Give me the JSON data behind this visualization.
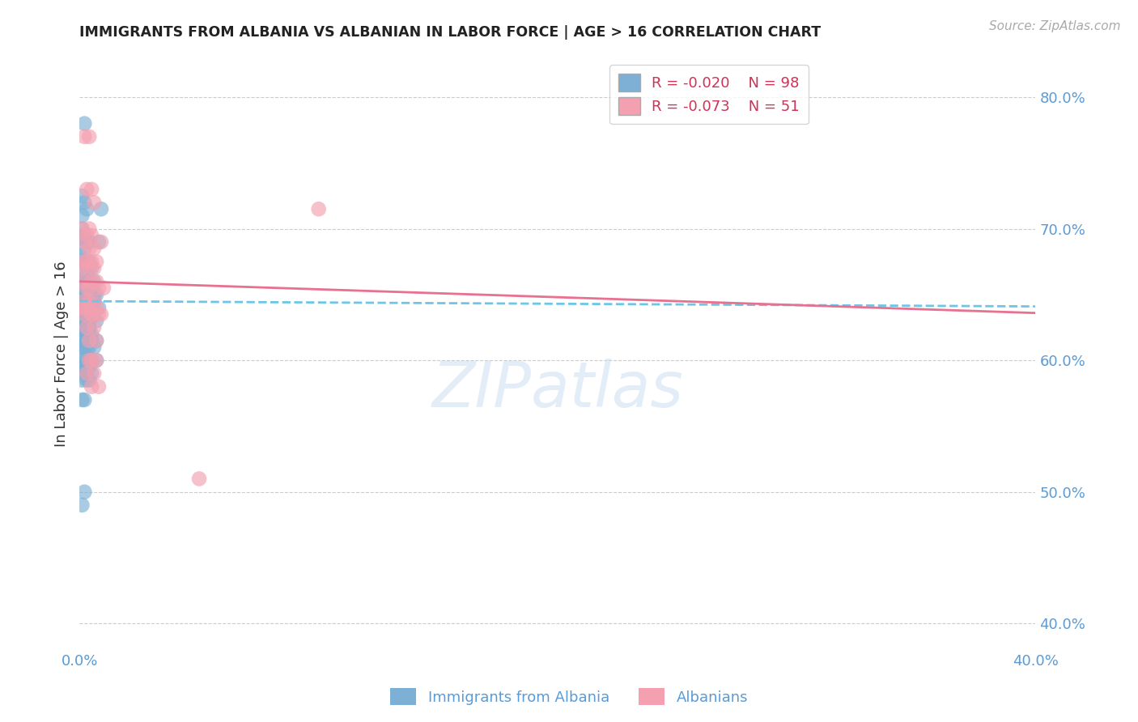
{
  "title": "IMMIGRANTS FROM ALBANIA VS ALBANIAN IN LABOR FORCE | AGE > 16 CORRELATION CHART",
  "source_text": "Source: ZipAtlas.com",
  "ylabel": "In Labor Force | Age > 16",
  "right_yticks": [
    0.8,
    0.7,
    0.6,
    0.5,
    0.4
  ],
  "right_yticklabels": [
    "80.0%",
    "70.0%",
    "60.0%",
    "50.0%",
    "40.0%"
  ],
  "xlim": [
    0.0,
    0.4
  ],
  "ylim": [
    0.38,
    0.83
  ],
  "background_color": "#ffffff",
  "grid_color": "#cccccc",
  "blue_color": "#7EB0D5",
  "pink_color": "#F4A0B0",
  "legend_R1": "R = -0.020",
  "legend_N1": "N = 98",
  "legend_R2": "R = -0.073",
  "legend_N2": "N = 51",
  "title_color": "#222222",
  "axis_color": "#5B9BD5",
  "blue_scatter": [
    [
      0.0,
      0.693
    ],
    [
      0.0,
      0.68
    ],
    [
      0.002,
      0.78
    ],
    [
      0.001,
      0.71
    ],
    [
      0.001,
      0.725
    ],
    [
      0.002,
      0.72
    ],
    [
      0.003,
      0.715
    ],
    [
      0.001,
      0.7
    ],
    [
      0.002,
      0.695
    ],
    [
      0.003,
      0.69
    ],
    [
      0.004,
      0.69
    ],
    [
      0.002,
      0.685
    ],
    [
      0.001,
      0.675
    ],
    [
      0.003,
      0.675
    ],
    [
      0.004,
      0.675
    ],
    [
      0.002,
      0.67
    ],
    [
      0.003,
      0.665
    ],
    [
      0.004,
      0.67
    ],
    [
      0.005,
      0.67
    ],
    [
      0.001,
      0.66
    ],
    [
      0.002,
      0.66
    ],
    [
      0.003,
      0.66
    ],
    [
      0.004,
      0.66
    ],
    [
      0.006,
      0.66
    ],
    [
      0.002,
      0.655
    ],
    [
      0.003,
      0.655
    ],
    [
      0.005,
      0.655
    ],
    [
      0.001,
      0.65
    ],
    [
      0.002,
      0.65
    ],
    [
      0.003,
      0.65
    ],
    [
      0.004,
      0.65
    ],
    [
      0.006,
      0.65
    ],
    [
      0.007,
      0.65
    ],
    [
      0.001,
      0.645
    ],
    [
      0.002,
      0.645
    ],
    [
      0.003,
      0.645
    ],
    [
      0.004,
      0.645
    ],
    [
      0.005,
      0.645
    ],
    [
      0.006,
      0.645
    ],
    [
      0.0,
      0.64
    ],
    [
      0.001,
      0.64
    ],
    [
      0.002,
      0.64
    ],
    [
      0.003,
      0.64
    ],
    [
      0.005,
      0.64
    ],
    [
      0.008,
      0.64
    ],
    [
      0.001,
      0.635
    ],
    [
      0.002,
      0.635
    ],
    [
      0.003,
      0.635
    ],
    [
      0.004,
      0.635
    ],
    [
      0.005,
      0.635
    ],
    [
      0.006,
      0.635
    ],
    [
      0.0,
      0.63
    ],
    [
      0.001,
      0.63
    ],
    [
      0.002,
      0.63
    ],
    [
      0.003,
      0.63
    ],
    [
      0.004,
      0.63
    ],
    [
      0.007,
      0.63
    ],
    [
      0.0,
      0.625
    ],
    [
      0.001,
      0.625
    ],
    [
      0.002,
      0.625
    ],
    [
      0.003,
      0.625
    ],
    [
      0.004,
      0.625
    ],
    [
      0.002,
      0.62
    ],
    [
      0.003,
      0.62
    ],
    [
      0.004,
      0.62
    ],
    [
      0.005,
      0.62
    ],
    [
      0.001,
      0.615
    ],
    [
      0.002,
      0.615
    ],
    [
      0.003,
      0.615
    ],
    [
      0.005,
      0.615
    ],
    [
      0.007,
      0.615
    ],
    [
      0.0,
      0.61
    ],
    [
      0.001,
      0.61
    ],
    [
      0.002,
      0.61
    ],
    [
      0.003,
      0.61
    ],
    [
      0.004,
      0.61
    ],
    [
      0.006,
      0.61
    ],
    [
      0.001,
      0.6
    ],
    [
      0.002,
      0.6
    ],
    [
      0.003,
      0.6
    ],
    [
      0.004,
      0.6
    ],
    [
      0.005,
      0.6
    ],
    [
      0.007,
      0.6
    ],
    [
      0.002,
      0.595
    ],
    [
      0.003,
      0.595
    ],
    [
      0.004,
      0.595
    ],
    [
      0.002,
      0.59
    ],
    [
      0.003,
      0.59
    ],
    [
      0.005,
      0.59
    ],
    [
      0.001,
      0.585
    ],
    [
      0.003,
      0.585
    ],
    [
      0.004,
      0.585
    ],
    [
      0.001,
      0.57
    ],
    [
      0.002,
      0.57
    ],
    [
      0.001,
      0.49
    ],
    [
      0.002,
      0.5
    ],
    [
      0.008,
      0.69
    ],
    [
      0.009,
      0.715
    ]
  ],
  "pink_scatter": [
    [
      0.002,
      0.77
    ],
    [
      0.004,
      0.77
    ],
    [
      0.003,
      0.73
    ],
    [
      0.005,
      0.73
    ],
    [
      0.006,
      0.72
    ],
    [
      0.001,
      0.7
    ],
    [
      0.004,
      0.7
    ],
    [
      0.003,
      0.695
    ],
    [
      0.005,
      0.695
    ],
    [
      0.004,
      0.685
    ],
    [
      0.006,
      0.685
    ],
    [
      0.002,
      0.675
    ],
    [
      0.003,
      0.675
    ],
    [
      0.005,
      0.675
    ],
    [
      0.007,
      0.675
    ],
    [
      0.001,
      0.67
    ],
    [
      0.004,
      0.67
    ],
    [
      0.006,
      0.67
    ],
    [
      0.002,
      0.66
    ],
    [
      0.005,
      0.66
    ],
    [
      0.007,
      0.66
    ],
    [
      0.003,
      0.655
    ],
    [
      0.008,
      0.655
    ],
    [
      0.002,
      0.645
    ],
    [
      0.004,
      0.645
    ],
    [
      0.006,
      0.645
    ],
    [
      0.001,
      0.64
    ],
    [
      0.003,
      0.64
    ],
    [
      0.007,
      0.64
    ],
    [
      0.002,
      0.635
    ],
    [
      0.005,
      0.635
    ],
    [
      0.008,
      0.635
    ],
    [
      0.003,
      0.625
    ],
    [
      0.006,
      0.625
    ],
    [
      0.004,
      0.615
    ],
    [
      0.007,
      0.615
    ],
    [
      0.004,
      0.6
    ],
    [
      0.005,
      0.6
    ],
    [
      0.007,
      0.6
    ],
    [
      0.003,
      0.59
    ],
    [
      0.006,
      0.59
    ],
    [
      0.005,
      0.58
    ],
    [
      0.008,
      0.58
    ],
    [
      0.1,
      0.715
    ],
    [
      0.05,
      0.51
    ],
    [
      0.002,
      0.69
    ],
    [
      0.009,
      0.69
    ],
    [
      0.005,
      0.635
    ],
    [
      0.009,
      0.635
    ],
    [
      0.004,
      0.655
    ],
    [
      0.01,
      0.655
    ]
  ],
  "blue_trend": {
    "R": -0.02,
    "intercept": 0.645,
    "slope": -0.01
  },
  "pink_trend": {
    "R": -0.073,
    "intercept": 0.66,
    "slope": -0.06
  }
}
